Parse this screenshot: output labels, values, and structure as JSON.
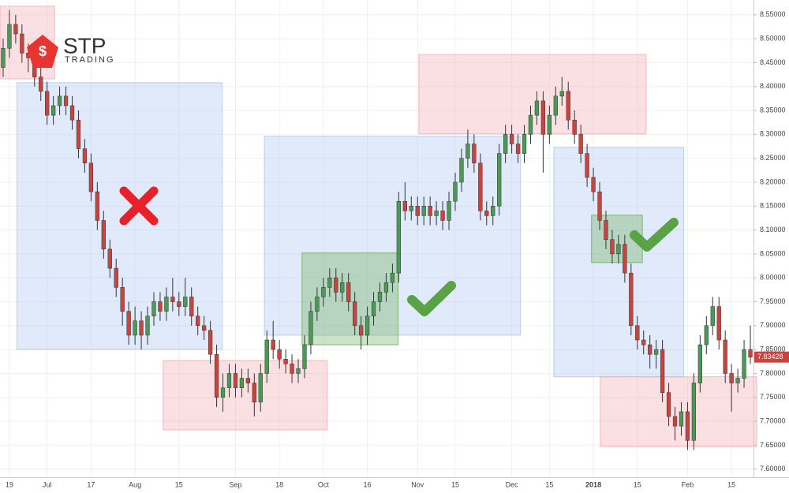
{
  "logo": {
    "name": "STP",
    "tagline": "TRADING"
  },
  "chart_data": {
    "type": "candlestick",
    "categories": [
      null,
      "19",
      null,
      null,
      null,
      null,
      null,
      "Jul",
      null,
      null,
      null,
      null,
      null,
      null,
      "17",
      null,
      null,
      null,
      null,
      null,
      null,
      "Aug",
      null,
      null,
      null,
      null,
      null,
      null,
      "15",
      null,
      null,
      null,
      null,
      null,
      null,
      null,
      null,
      "Sep",
      null,
      null,
      null,
      null,
      null,
      null,
      "18",
      null,
      null,
      null,
      null,
      null,
      null,
      "Oct",
      null,
      null,
      null,
      null,
      null,
      null,
      "16",
      null,
      null,
      null,
      null,
      null,
      null,
      null,
      "Nov",
      null,
      null,
      null,
      null,
      null,
      "15",
      null,
      null,
      null,
      null,
      null,
      null,
      null,
      null,
      "Dec",
      null,
      null,
      null,
      null,
      null,
      "15",
      null,
      null,
      null,
      null,
      null,
      null,
      "2018",
      null,
      null,
      null,
      null,
      null,
      null,
      "15",
      null,
      null,
      null,
      null,
      null,
      null,
      null,
      "Feb",
      null,
      null,
      null,
      null,
      null,
      null,
      "15",
      null,
      null,
      null
    ],
    "open": [
      8.44,
      8.48,
      8.53,
      8.51,
      8.47,
      8.46,
      8.42,
      8.39,
      8.34,
      8.36,
      8.38,
      8.36,
      8.33,
      8.27,
      8.24,
      8.18,
      8.12,
      8.06,
      8.02,
      7.98,
      7.93,
      7.88,
      7.91,
      7.88,
      7.92,
      7.95,
      7.93,
      7.96,
      7.95,
      7.94,
      7.96,
      7.92,
      7.9,
      7.89,
      7.84,
      7.75,
      7.77,
      7.8,
      7.77,
      7.79,
      7.78,
      7.74,
      7.8,
      7.87,
      7.85,
      7.83,
      7.82,
      7.8,
      7.81,
      7.86,
      7.93,
      7.96,
      7.98,
      8.0,
      7.97,
      7.99,
      7.95,
      7.9,
      7.88,
      7.92,
      7.95,
      7.97,
      7.99,
      8.01,
      8.16,
      8.14,
      8.15,
      8.13,
      8.15,
      8.13,
      8.14,
      8.12,
      8.16,
      8.2,
      8.25,
      8.28,
      8.24,
      8.14,
      8.13,
      8.15,
      8.26,
      8.3,
      8.28,
      8.26,
      8.3,
      8.34,
      8.37,
      8.3,
      8.34,
      8.38,
      8.39,
      8.33,
      8.3,
      8.26,
      8.21,
      8.18,
      8.12,
      8.08,
      8.05,
      8.07,
      8.01,
      7.9,
      7.87,
      7.86,
      7.84,
      7.85,
      7.76,
      7.71,
      7.69,
      7.72,
      7.66,
      7.78,
      7.86,
      7.9,
      7.94,
      7.87,
      7.8,
      7.78,
      7.79,
      7.85
    ],
    "high": [
      8.5,
      8.56,
      8.55,
      8.53,
      8.49,
      8.48,
      8.44,
      8.41,
      8.38,
      8.4,
      8.4,
      8.38,
      8.35,
      8.29,
      8.26,
      8.2,
      8.14,
      8.08,
      8.04,
      8.0,
      7.95,
      7.94,
      7.93,
      7.94,
      7.97,
      7.97,
      7.98,
      8.0,
      7.97,
      8.0,
      7.98,
      7.94,
      7.92,
      7.91,
      7.86,
      7.8,
      7.82,
      7.82,
      7.81,
      7.81,
      7.8,
      7.82,
      7.89,
      7.91,
      7.87,
      7.85,
      7.84,
      7.83,
      7.88,
      7.95,
      7.98,
      8.0,
      8.02,
      8.02,
      8.01,
      8.01,
      7.97,
      7.92,
      7.94,
      7.97,
      7.99,
      8.01,
      8.03,
      8.18,
      8.2,
      8.17,
      8.17,
      8.17,
      8.17,
      8.16,
      8.16,
      8.18,
      8.22,
      8.27,
      8.31,
      8.3,
      8.26,
      8.16,
      8.17,
      8.28,
      8.32,
      8.32,
      8.3,
      8.32,
      8.36,
      8.39,
      8.39,
      8.36,
      8.4,
      8.42,
      8.41,
      8.35,
      8.32,
      8.28,
      8.23,
      8.2,
      8.14,
      8.1,
      8.09,
      8.09,
      8.03,
      7.92,
      7.89,
      7.88,
      7.87,
      7.87,
      7.78,
      7.73,
      7.74,
      7.74,
      7.8,
      7.88,
      7.92,
      7.96,
      7.96,
      7.89,
      7.82,
      7.81,
      7.87,
      7.9
    ],
    "low": [
      8.42,
      8.46,
      8.49,
      8.45,
      8.43,
      8.4,
      8.37,
      8.32,
      8.32,
      8.34,
      8.34,
      8.31,
      8.25,
      8.22,
      8.16,
      8.1,
      8.04,
      8.0,
      7.96,
      7.9,
      7.86,
      7.86,
      7.85,
      7.86,
      7.9,
      7.91,
      7.91,
      7.93,
      7.92,
      7.92,
      7.9,
      7.88,
      7.87,
      7.82,
      7.73,
      7.72,
      7.75,
      7.75,
      7.75,
      7.76,
      7.71,
      7.72,
      7.78,
      7.83,
      7.81,
      7.8,
      7.78,
      7.78,
      7.79,
      7.84,
      7.91,
      7.94,
      7.96,
      7.95,
      7.95,
      7.93,
      7.88,
      7.85,
      7.86,
      7.9,
      7.93,
      7.95,
      7.97,
      7.99,
      8.12,
      8.12,
      8.11,
      8.11,
      8.11,
      8.11,
      8.1,
      8.1,
      8.14,
      8.18,
      8.23,
      8.22,
      8.12,
      8.11,
      8.11,
      8.13,
      8.24,
      8.26,
      8.24,
      8.24,
      8.28,
      8.32,
      8.22,
      8.28,
      8.32,
      8.36,
      8.31,
      8.28,
      8.24,
      8.19,
      8.16,
      8.1,
      8.06,
      8.03,
      8.03,
      7.99,
      7.88,
      7.85,
      7.84,
      7.81,
      7.81,
      7.74,
      7.69,
      7.66,
      7.67,
      7.64,
      7.64,
      7.76,
      7.84,
      7.88,
      7.85,
      7.78,
      7.72,
      7.76,
      7.77,
      7.82
    ],
    "close": [
      8.48,
      8.53,
      8.51,
      8.47,
      8.46,
      8.42,
      8.39,
      8.34,
      8.36,
      8.38,
      8.36,
      8.33,
      8.27,
      8.24,
      8.18,
      8.12,
      8.06,
      8.02,
      7.98,
      7.93,
      7.88,
      7.91,
      7.88,
      7.92,
      7.95,
      7.93,
      7.96,
      7.95,
      7.94,
      7.96,
      7.92,
      7.9,
      7.89,
      7.84,
      7.75,
      7.77,
      7.8,
      7.77,
      7.79,
      7.78,
      7.74,
      7.8,
      7.87,
      7.85,
      7.83,
      7.82,
      7.8,
      7.81,
      7.86,
      7.93,
      7.96,
      7.98,
      8.0,
      7.97,
      7.99,
      7.95,
      7.9,
      7.88,
      7.92,
      7.95,
      7.97,
      7.99,
      8.01,
      8.16,
      8.14,
      8.15,
      8.13,
      8.15,
      8.13,
      8.14,
      8.12,
      8.16,
      8.2,
      8.25,
      8.28,
      8.24,
      8.14,
      8.13,
      8.15,
      8.26,
      8.3,
      8.28,
      8.26,
      8.3,
      8.34,
      8.37,
      8.3,
      8.34,
      8.38,
      8.39,
      8.33,
      8.3,
      8.26,
      8.21,
      8.18,
      8.12,
      8.08,
      8.05,
      8.07,
      8.01,
      7.9,
      7.87,
      7.86,
      7.84,
      7.85,
      7.76,
      7.71,
      7.69,
      7.72,
      7.66,
      7.78,
      7.86,
      7.9,
      7.94,
      7.87,
      7.8,
      7.78,
      7.79,
      7.85,
      7.834
    ],
    "up_color": "#4a9a56",
    "down_color": "#c8453f",
    "ylim": [
      7.583,
      8.581
    ],
    "yticks": [
      {
        "value": 7.6,
        "label": "7.60000"
      },
      {
        "value": 7.65,
        "label": "7.65000"
      },
      {
        "value": 7.7,
        "label": "7.70000"
      },
      {
        "value": 7.75,
        "label": "7.75000"
      },
      {
        "value": 7.8,
        "label": "7.80000"
      },
      {
        "value": 7.85,
        "label": "7.85000"
      },
      {
        "value": 7.9,
        "label": "7.90000"
      },
      {
        "value": 7.95,
        "label": "7.95000"
      },
      {
        "value": 8.0,
        "label": "8.00000"
      },
      {
        "value": 8.05,
        "label": "8.05000"
      },
      {
        "value": 8.1,
        "label": "8.10000"
      },
      {
        "value": 8.15,
        "label": "8.15000"
      },
      {
        "value": 8.2,
        "label": "8.20000"
      },
      {
        "value": 8.25,
        "label": "8.25000"
      },
      {
        "value": 8.3,
        "label": "8.30000"
      },
      {
        "value": 8.35,
        "label": "8.35000"
      },
      {
        "value": 8.4,
        "label": "8.40000"
      },
      {
        "value": 8.45,
        "label": "8.45000"
      },
      {
        "value": 8.5,
        "label": "8.50000"
      },
      {
        "value": 8.55,
        "label": "8.55000"
      }
    ],
    "grid": true,
    "last_price": {
      "value": 7.83428,
      "label": "7.83428"
    },
    "zones": [
      {
        "color": "#f4a6b0",
        "start": 0,
        "end": 8.7,
        "low": 8.416,
        "high": 8.568
      },
      {
        "color": "#a9c4f0",
        "start": 2.7,
        "end": 35.4,
        "low": 7.85,
        "high": 8.408
      },
      {
        "color": "#f4a6b0",
        "start": 26,
        "end": 52.1,
        "low": 7.682,
        "high": 7.827
      },
      {
        "color": "#a9c4f0",
        "start": 42.1,
        "end": 82.9,
        "low": 7.88,
        "high": 8.296
      },
      {
        "color": "#6aab55",
        "start": 48.1,
        "end": 63.4,
        "low": 7.86,
        "high": 8.052
      },
      {
        "color": "#f4a6b0",
        "start": 66.7,
        "end": 102.9,
        "low": 8.301,
        "high": 8.467
      },
      {
        "color": "#a9c4f0",
        "start": 88.2,
        "end": 108.9,
        "low": 7.793,
        "high": 8.273
      },
      {
        "color": "#6aab55",
        "start": 94.2,
        "end": 102.3,
        "low": 8.032,
        "high": 8.131
      },
      {
        "color": "#f4a6b0",
        "start": 95.6,
        "end": 120.5,
        "low": 7.647,
        "high": 7.793
      }
    ]
  }
}
